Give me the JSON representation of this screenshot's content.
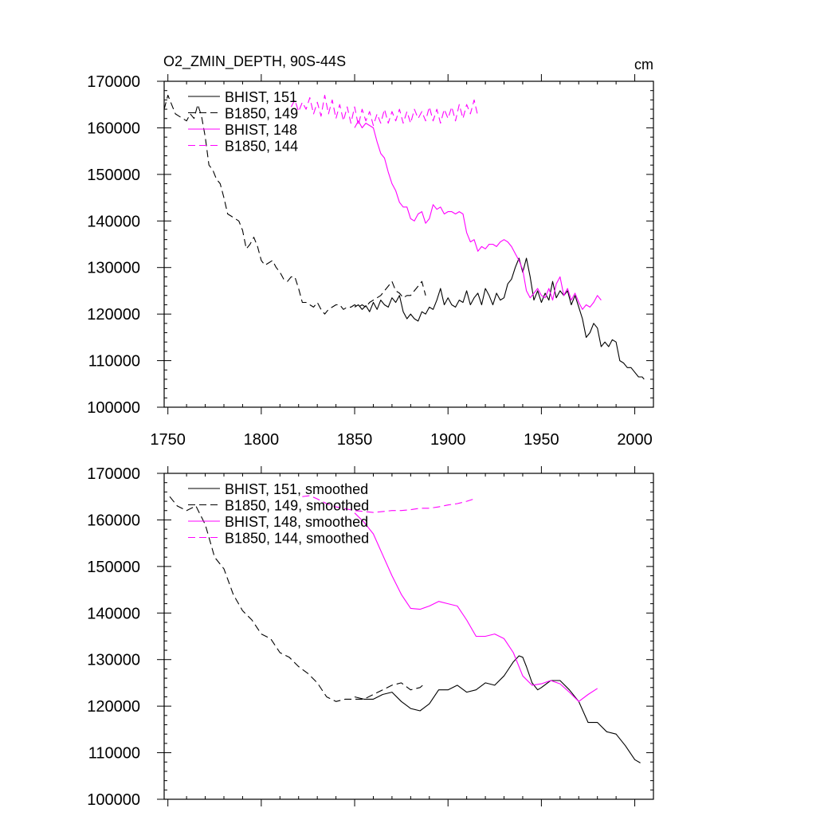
{
  "figure": {
    "title": "O2_ZMIN_DEPTH, 90S-44S",
    "units": "cm"
  },
  "colors": {
    "black": "#000000",
    "magenta": "#ff00ff",
    "background": "#ffffff"
  },
  "chart_data": [
    {
      "type": "line",
      "title": "O2_ZMIN_DEPTH, 90S-44S",
      "units": "cm",
      "xlabel": "",
      "ylabel": "",
      "xlim": [
        1748,
        2010
      ],
      "ylim": [
        100000,
        170000
      ],
      "x_ticks": [
        1750,
        1800,
        1850,
        1900,
        1950,
        2000
      ],
      "x_tick_labels": [
        "1750",
        "1800",
        "1850",
        "1900",
        "1950",
        "2000"
      ],
      "y_ticks": [
        100000,
        110000,
        120000,
        130000,
        140000,
        150000,
        160000,
        170000
      ],
      "y_tick_labels": [
        "100000",
        "110000",
        "120000",
        "130000",
        "140000",
        "150000",
        "160000",
        "170000"
      ],
      "grid": false,
      "legend_position": "top-left",
      "series": [
        {
          "name": "BHIST, 151",
          "color": "#000000",
          "dash": "solid",
          "x": [
            1850,
            1852,
            1854,
            1856,
            1858,
            1860,
            1862,
            1864,
            1866,
            1868,
            1870,
            1872,
            1874,
            1876,
            1878,
            1880,
            1882,
            1884,
            1886,
            1888,
            1890,
            1892,
            1894,
            1896,
            1898,
            1900,
            1902,
            1904,
            1906,
            1908,
            1910,
            1912,
            1914,
            1916,
            1918,
            1920,
            1922,
            1924,
            1926,
            1928,
            1930,
            1932,
            1934,
            1936,
            1938,
            1940,
            1942,
            1944,
            1946,
            1948,
            1950,
            1952,
            1954,
            1956,
            1958,
            1960,
            1962,
            1964,
            1966,
            1968,
            1970,
            1972,
            1974,
            1976,
            1978,
            1980,
            1982,
            1984,
            1986,
            1988,
            1990,
            1992,
            1994,
            1996,
            1998,
            2000,
            2002,
            2004,
            2005
          ],
          "y": [
            121500,
            122000,
            121000,
            121800,
            120500,
            122500,
            121000,
            123000,
            122000,
            121500,
            123500,
            122500,
            124000,
            120500,
            119000,
            120000,
            119000,
            118500,
            120500,
            120000,
            121500,
            121000,
            123000,
            125500,
            122000,
            123500,
            122000,
            121500,
            123000,
            122500,
            125000,
            122000,
            123500,
            124500,
            122000,
            125500,
            124000,
            122000,
            124500,
            123000,
            123500,
            126500,
            127500,
            130000,
            132000,
            129000,
            132000,
            128000,
            123000,
            125000,
            122500,
            124500,
            123000,
            127000,
            123500,
            125000,
            124000,
            125000,
            122000,
            124000,
            121500,
            119000,
            115000,
            116000,
            118000,
            117000,
            113000,
            114000,
            113000,
            114500,
            114000,
            110000,
            109500,
            108500,
            108500,
            107500,
            106500,
            106500,
            106000
          ]
        },
        {
          "name": "B1850, 149",
          "color": "#000000",
          "dash": "dashed",
          "x": [
            1748,
            1750,
            1752,
            1754,
            1756,
            1758,
            1760,
            1762,
            1764,
            1766,
            1768,
            1770,
            1772,
            1774,
            1776,
            1778,
            1780,
            1782,
            1784,
            1786,
            1788,
            1790,
            1792,
            1794,
            1796,
            1798,
            1800,
            1802,
            1804,
            1806,
            1808,
            1810,
            1812,
            1814,
            1816,
            1818,
            1820,
            1822,
            1824,
            1826,
            1828,
            1830,
            1832,
            1834,
            1836,
            1838,
            1840,
            1842,
            1844,
            1846,
            1848,
            1850,
            1852,
            1854,
            1856,
            1858,
            1860,
            1862,
            1864,
            1866,
            1868,
            1870,
            1872,
            1874,
            1876,
            1878,
            1880,
            1882,
            1884,
            1886,
            1888
          ],
          "y": [
            164000,
            167000,
            165000,
            163000,
            162500,
            162000,
            161500,
            163000,
            162000,
            165000,
            162500,
            158000,
            152000,
            151000,
            149000,
            148000,
            145000,
            141500,
            141000,
            140500,
            140000,
            138000,
            134000,
            135000,
            136500,
            134500,
            131500,
            130500,
            131000,
            131500,
            130000,
            129000,
            127500,
            127000,
            128000,
            128000,
            125500,
            122500,
            122500,
            122000,
            121500,
            122500,
            121000,
            120000,
            121000,
            121500,
            122000,
            122000,
            121000,
            121500,
            121500,
            122000,
            121500,
            122000,
            121500,
            122500,
            123000,
            123500,
            124000,
            125000,
            126000,
            127000,
            125000,
            124500,
            123500,
            124000,
            124000,
            125000,
            126000,
            127000,
            124000
          ]
        },
        {
          "name": "BHIST, 148",
          "color": "#ff00ff",
          "dash": "solid",
          "x": [
            1850,
            1852,
            1854,
            1856,
            1858,
            1860,
            1862,
            1864,
            1866,
            1868,
            1870,
            1872,
            1874,
            1876,
            1878,
            1880,
            1882,
            1884,
            1886,
            1888,
            1890,
            1892,
            1894,
            1896,
            1898,
            1900,
            1902,
            1904,
            1906,
            1908,
            1910,
            1912,
            1914,
            1916,
            1918,
            1920,
            1922,
            1924,
            1926,
            1928,
            1930,
            1932,
            1934,
            1936,
            1938,
            1940,
            1942,
            1944,
            1946,
            1948,
            1950,
            1952,
            1954,
            1956,
            1958,
            1960,
            1962,
            1964,
            1966,
            1968,
            1970,
            1972,
            1974,
            1976,
            1978,
            1980,
            1982
          ],
          "y": [
            160000,
            161500,
            160000,
            161000,
            160500,
            160000,
            157000,
            154500,
            153500,
            150500,
            148000,
            146500,
            144000,
            143000,
            143000,
            140500,
            140000,
            141500,
            142000,
            139500,
            140500,
            143500,
            142500,
            143000,
            141500,
            142000,
            142000,
            141500,
            142000,
            141500,
            137500,
            135500,
            136000,
            133500,
            134500,
            134000,
            135000,
            135000,
            134500,
            135500,
            136000,
            135500,
            134500,
            133000,
            131500,
            129500,
            125000,
            123500,
            124500,
            125500,
            124000,
            123500,
            125500,
            123000,
            126500,
            128000,
            124000,
            125500,
            123000,
            124500,
            122500,
            121000,
            122000,
            121500,
            122500,
            124000,
            123000
          ]
        },
        {
          "name": "B1850, 144",
          "color": "#ff00ff",
          "dash": "dashed",
          "x": [
            1816,
            1818,
            1820,
            1822,
            1824,
            1826,
            1828,
            1830,
            1832,
            1834,
            1836,
            1838,
            1840,
            1842,
            1844,
            1846,
            1848,
            1850,
            1852,
            1854,
            1856,
            1858,
            1860,
            1862,
            1864,
            1866,
            1868,
            1870,
            1872,
            1874,
            1876,
            1878,
            1880,
            1882,
            1884,
            1886,
            1888,
            1890,
            1892,
            1894,
            1896,
            1898,
            1900,
            1902,
            1904,
            1906,
            1908,
            1910,
            1912,
            1914,
            1916
          ],
          "y": [
            164500,
            166000,
            163500,
            165500,
            164000,
            166500,
            163000,
            165500,
            162500,
            167000,
            163000,
            166000,
            162000,
            165000,
            161500,
            164500,
            161000,
            164500,
            160500,
            164000,
            161500,
            163500,
            160500,
            163000,
            161000,
            164000,
            161000,
            163500,
            161500,
            164000,
            161000,
            163500,
            161000,
            164000,
            162000,
            163500,
            161500,
            164500,
            161500,
            164000,
            161000,
            164000,
            162000,
            164500,
            161500,
            165000,
            162000,
            165000,
            163000,
            166000,
            162500
          ]
        }
      ]
    },
    {
      "type": "line",
      "title": "",
      "xlabel": "",
      "ylabel": "",
      "xlim": [
        1748,
        2010
      ],
      "ylim": [
        100000,
        170000
      ],
      "x_ticks": [
        1750,
        1800,
        1850,
        1900,
        1950,
        2000
      ],
      "y_ticks": [
        100000,
        110000,
        120000,
        130000,
        140000,
        150000,
        160000,
        170000
      ],
      "y_tick_labels": [
        "100000",
        "110000",
        "120000",
        "130000",
        "140000",
        "150000",
        "160000",
        "170000"
      ],
      "grid": false,
      "legend_position": "top-left",
      "series": [
        {
          "name": "BHIST, 151, smoothed",
          "color": "#000000",
          "dash": "solid",
          "x": [
            1850,
            1855,
            1860,
            1865,
            1870,
            1875,
            1880,
            1885,
            1890,
            1895,
            1900,
            1905,
            1910,
            1915,
            1920,
            1925,
            1930,
            1935,
            1938,
            1940,
            1942,
            1945,
            1948,
            1950,
            1955,
            1960,
            1965,
            1970,
            1975,
            1980,
            1985,
            1990,
            1995,
            2000,
            2003
          ],
          "y": [
            122000,
            121500,
            121500,
            122500,
            123000,
            121000,
            119500,
            119000,
            120500,
            123500,
            123500,
            124500,
            123000,
            123500,
            125000,
            124500,
            126500,
            129500,
            130800,
            130500,
            128500,
            125000,
            123500,
            124000,
            125500,
            125500,
            123500,
            121000,
            116500,
            116500,
            114500,
            114000,
            111500,
            108500,
            107800
          ]
        },
        {
          "name": "B1850, 149, smoothed",
          "color": "#000000",
          "dash": "dashed",
          "x": [
            1751,
            1755,
            1760,
            1765,
            1770,
            1775,
            1780,
            1785,
            1790,
            1795,
            1800,
            1805,
            1810,
            1815,
            1820,
            1825,
            1830,
            1835,
            1840,
            1845,
            1850,
            1855,
            1860,
            1865,
            1870,
            1875,
            1880,
            1885,
            1888
          ],
          "y": [
            165000,
            163000,
            162000,
            163000,
            159000,
            152000,
            149500,
            144000,
            140500,
            138500,
            135500,
            134500,
            131500,
            130500,
            128500,
            127000,
            125000,
            122000,
            121000,
            121500,
            121500,
            121500,
            122500,
            123500,
            124500,
            125000,
            123500,
            124000,
            125000
          ]
        },
        {
          "name": "BHIST, 148, smoothed",
          "color": "#ff00ff",
          "dash": "solid",
          "x": [
            1850,
            1855,
            1860,
            1865,
            1870,
            1875,
            1880,
            1885,
            1890,
            1895,
            1900,
            1905,
            1910,
            1915,
            1920,
            1925,
            1930,
            1935,
            1940,
            1945,
            1950,
            1955,
            1960,
            1965,
            1970,
            1975,
            1980
          ],
          "y": [
            161500,
            159500,
            157000,
            152500,
            148000,
            144000,
            141000,
            140800,
            141500,
            142500,
            142000,
            141500,
            138500,
            135000,
            135000,
            135500,
            134500,
            131500,
            126500,
            124500,
            124800,
            125500,
            124800,
            123000,
            121000,
            122500,
            123800
          ]
        },
        {
          "name": "B1850, 144, smoothed",
          "color": "#ff00ff",
          "dash": "dashed",
          "x": [
            1822,
            1826,
            1830,
            1835,
            1840,
            1845,
            1850,
            1855,
            1860,
            1865,
            1870,
            1875,
            1880,
            1885,
            1890,
            1895,
            1900,
            1905,
            1910,
            1914
          ],
          "y": [
            165000,
            165200,
            164500,
            163500,
            162800,
            162400,
            162000,
            161800,
            161600,
            161800,
            162000,
            162000,
            162200,
            162500,
            162500,
            162800,
            163200,
            163500,
            164000,
            164500
          ]
        }
      ]
    }
  ]
}
